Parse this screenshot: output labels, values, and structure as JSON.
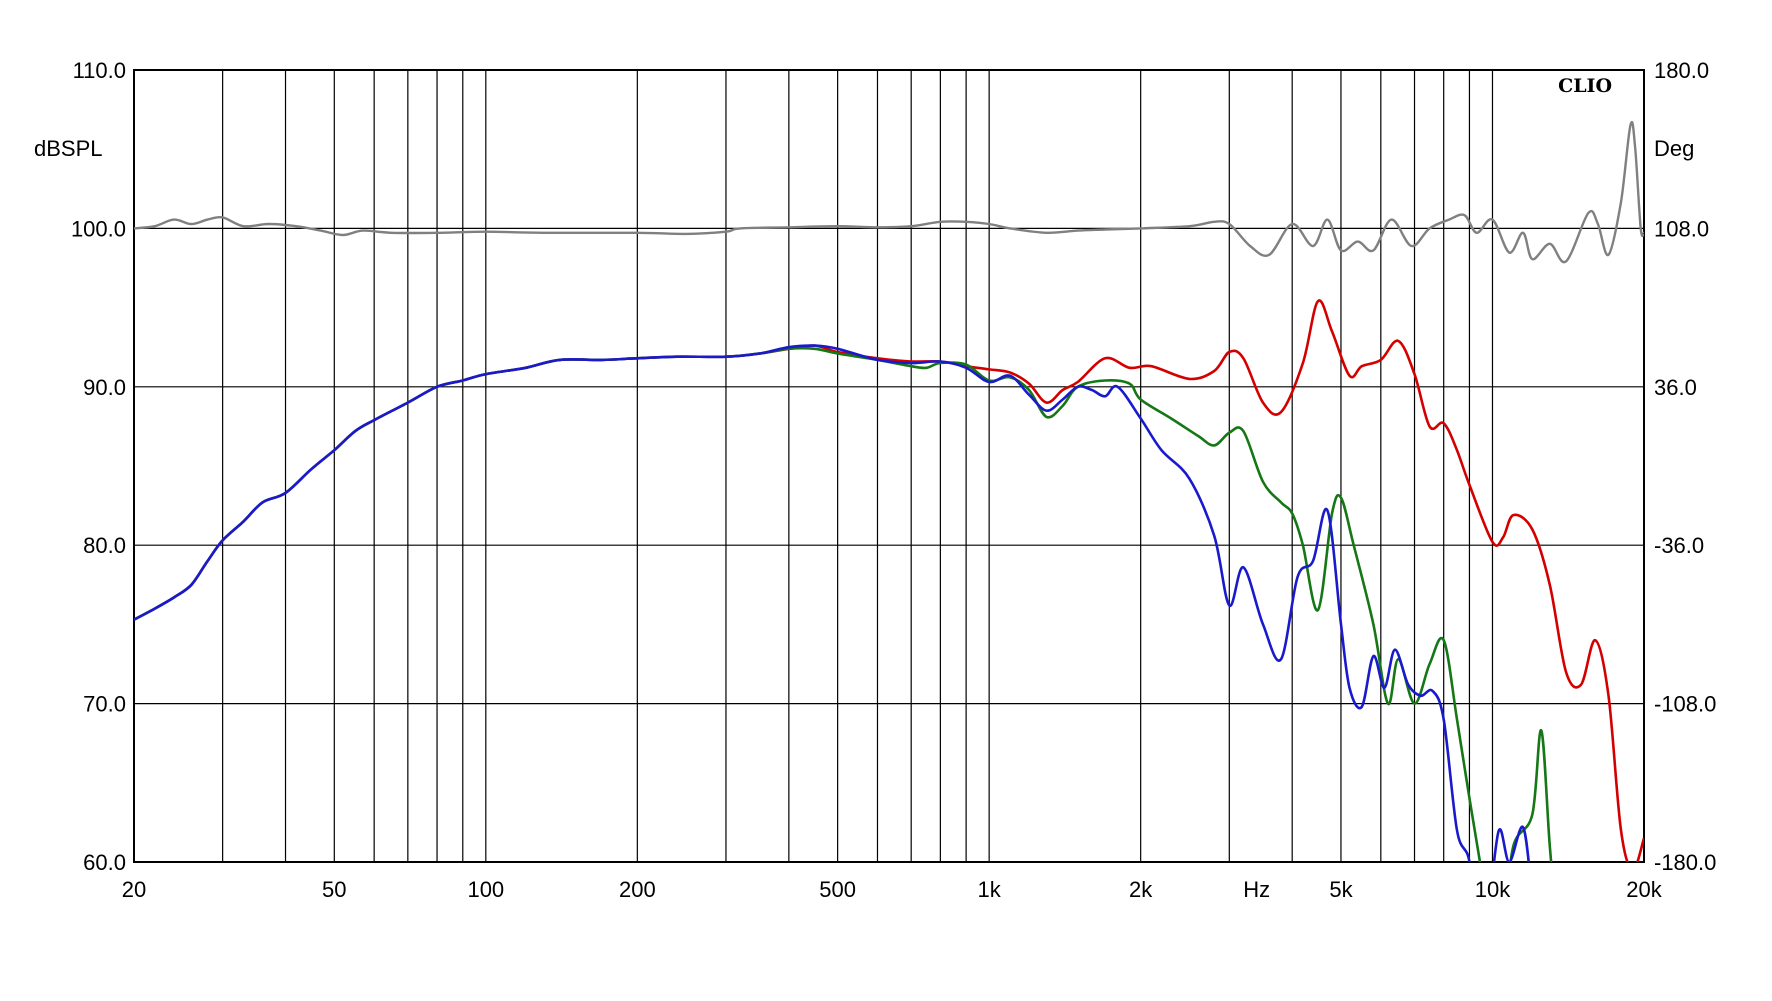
{
  "chart_data": {
    "type": "line",
    "brand": "CLIO",
    "x_scale": "log",
    "xlim": [
      20,
      20000
    ],
    "ylim_left": [
      60,
      110
    ],
    "ylim_right": [
      -180,
      180
    ],
    "grid": true,
    "left_unit": "dBSPL",
    "right_unit": "Deg",
    "x_unit": "Hz",
    "x_ticks": [
      {
        "value": 20,
        "label": "20"
      },
      {
        "value": 50,
        "label": "50"
      },
      {
        "value": 100,
        "label": "100"
      },
      {
        "value": 200,
        "label": "200"
      },
      {
        "value": 500,
        "label": "500"
      },
      {
        "value": 1000,
        "label": "1k"
      },
      {
        "value": 2000,
        "label": "2k"
      },
      {
        "value": 5000,
        "label": "5k"
      },
      {
        "value": 10000,
        "label": "10k"
      },
      {
        "value": 20000,
        "label": "20k"
      }
    ],
    "x_unit_position": 3400,
    "y_ticks_left": [
      {
        "value": 110,
        "label": "110.0"
      },
      {
        "value": 100,
        "label": "100.0"
      },
      {
        "value": 90,
        "label": "90.0"
      },
      {
        "value": 80,
        "label": "80.0"
      },
      {
        "value": 70,
        "label": "70.0"
      },
      {
        "value": 60,
        "label": "60.0"
      }
    ],
    "y_ticks_right": [
      {
        "value": 180,
        "label": "180.0"
      },
      {
        "value": 108,
        "label": "108.0"
      },
      {
        "value": 36,
        "label": "36.0"
      },
      {
        "value": -36,
        "label": "-36.0"
      },
      {
        "value": -108,
        "label": "-108.0"
      },
      {
        "value": -180,
        "label": "-180.0"
      }
    ],
    "series": [
      {
        "color": "#808080",
        "axis": "right",
        "points": [
          [
            20,
            108
          ],
          [
            22,
            109
          ],
          [
            24,
            112
          ],
          [
            26,
            110
          ],
          [
            28,
            112
          ],
          [
            30,
            113
          ],
          [
            33,
            109
          ],
          [
            37,
            110
          ],
          [
            42,
            109
          ],
          [
            47,
            107
          ],
          [
            52,
            105
          ],
          [
            57,
            107
          ],
          [
            65,
            106
          ],
          [
            80,
            106
          ],
          [
            100,
            106.5
          ],
          [
            130,
            106
          ],
          [
            200,
            106
          ],
          [
            250,
            105.5
          ],
          [
            300,
            106.5
          ],
          [
            320,
            108
          ],
          [
            400,
            108.5
          ],
          [
            500,
            109
          ],
          [
            600,
            108.5
          ],
          [
            700,
            109
          ],
          [
            800,
            111
          ],
          [
            900,
            111
          ],
          [
            1000,
            110
          ],
          [
            1100,
            108
          ],
          [
            1300,
            106
          ],
          [
            1500,
            107
          ],
          [
            1700,
            107.5
          ],
          [
            2000,
            108
          ],
          [
            2500,
            109
          ],
          [
            2800,
            111
          ],
          [
            3000,
            110
          ],
          [
            3300,
            100
          ],
          [
            3600,
            96
          ],
          [
            4000,
            110
          ],
          [
            4400,
            100
          ],
          [
            4700,
            112
          ],
          [
            5000,
            98
          ],
          [
            5400,
            102
          ],
          [
            5800,
            98
          ],
          [
            6300,
            112
          ],
          [
            6900,
            100
          ],
          [
            7500,
            108
          ],
          [
            8200,
            112
          ],
          [
            8800,
            114
          ],
          [
            9300,
            106
          ],
          [
            10000,
            112
          ],
          [
            10800,
            97
          ],
          [
            11500,
            106
          ],
          [
            12000,
            94
          ],
          [
            13000,
            101
          ],
          [
            14000,
            93
          ],
          [
            15500,
            115
          ],
          [
            16200,
            110
          ],
          [
            17000,
            96
          ],
          [
            18000,
            120
          ],
          [
            18800,
            155
          ],
          [
            19200,
            145
          ],
          [
            19700,
            108
          ],
          [
            20000,
            106
          ]
        ]
      },
      {
        "color": "#d40000",
        "axis": "left",
        "points": [
          [
            20,
            75.3
          ],
          [
            22,
            76
          ],
          [
            24,
            76.7
          ],
          [
            26,
            77.5
          ],
          [
            28,
            79
          ],
          [
            30,
            80.3
          ],
          [
            33,
            81.5
          ],
          [
            36,
            82.7
          ],
          [
            40,
            83.3
          ],
          [
            45,
            84.8
          ],
          [
            50,
            86
          ],
          [
            55,
            87.2
          ],
          [
            60,
            87.9
          ],
          [
            70,
            89
          ],
          [
            80,
            90
          ],
          [
            90,
            90.4
          ],
          [
            100,
            90.8
          ],
          [
            120,
            91.2
          ],
          [
            140,
            91.7
          ],
          [
            170,
            91.7
          ],
          [
            200,
            91.8
          ],
          [
            240,
            91.9
          ],
          [
            300,
            91.9
          ],
          [
            350,
            92.1
          ],
          [
            400,
            92.4
          ],
          [
            450,
            92.6
          ],
          [
            500,
            92.2
          ],
          [
            600,
            91.8
          ],
          [
            700,
            91.6
          ],
          [
            800,
            91.6
          ],
          [
            900,
            91.3
          ],
          [
            1000,
            91.1
          ],
          [
            1100,
            90.9
          ],
          [
            1200,
            90.2
          ],
          [
            1300,
            89
          ],
          [
            1400,
            89.8
          ],
          [
            1500,
            90.3
          ],
          [
            1700,
            91.8
          ],
          [
            1900,
            91.2
          ],
          [
            2100,
            91.3
          ],
          [
            2500,
            90.5
          ],
          [
            2800,
            91
          ],
          [
            3000,
            92.2
          ],
          [
            3200,
            91.8
          ],
          [
            3500,
            89
          ],
          [
            3800,
            88.4
          ],
          [
            4200,
            91.5
          ],
          [
            4500,
            95.4
          ],
          [
            4800,
            93.5
          ],
          [
            5200,
            90.7
          ],
          [
            5500,
            91.3
          ],
          [
            6000,
            91.7
          ],
          [
            6500,
            92.9
          ],
          [
            7000,
            90.8
          ],
          [
            7500,
            87.5
          ],
          [
            8000,
            87.7
          ],
          [
            8500,
            86
          ],
          [
            9000,
            83.8
          ],
          [
            10000,
            80.2
          ],
          [
            10500,
            80.5
          ],
          [
            11000,
            81.9
          ],
          [
            12000,
            81
          ],
          [
            13000,
            77.5
          ],
          [
            14000,
            72
          ],
          [
            15000,
            71.2
          ],
          [
            16000,
            74
          ],
          [
            17000,
            70.5
          ],
          [
            18000,
            62
          ],
          [
            19000,
            59.5
          ],
          [
            20000,
            61.5
          ]
        ]
      },
      {
        "color": "#157715",
        "axis": "left",
        "points": [
          [
            20,
            75.3
          ],
          [
            22,
            76
          ],
          [
            24,
            76.7
          ],
          [
            26,
            77.5
          ],
          [
            28,
            79
          ],
          [
            30,
            80.3
          ],
          [
            33,
            81.5
          ],
          [
            36,
            82.7
          ],
          [
            40,
            83.3
          ],
          [
            45,
            84.8
          ],
          [
            50,
            86
          ],
          [
            55,
            87.2
          ],
          [
            60,
            87.9
          ],
          [
            70,
            89
          ],
          [
            80,
            90
          ],
          [
            90,
            90.4
          ],
          [
            100,
            90.8
          ],
          [
            120,
            91.2
          ],
          [
            140,
            91.7
          ],
          [
            170,
            91.7
          ],
          [
            200,
            91.8
          ],
          [
            240,
            91.9
          ],
          [
            300,
            91.9
          ],
          [
            350,
            92.1
          ],
          [
            400,
            92.4
          ],
          [
            450,
            92.4
          ],
          [
            500,
            92.1
          ],
          [
            600,
            91.7
          ],
          [
            700,
            91.3
          ],
          [
            750,
            91.2
          ],
          [
            800,
            91.5
          ],
          [
            900,
            91.4
          ],
          [
            1000,
            90.4
          ],
          [
            1100,
            90.6
          ],
          [
            1200,
            89.8
          ],
          [
            1300,
            88.1
          ],
          [
            1400,
            88.8
          ],
          [
            1500,
            90
          ],
          [
            1700,
            90.4
          ],
          [
            1900,
            90.2
          ],
          [
            2000,
            89.2
          ],
          [
            2300,
            88
          ],
          [
            2600,
            86.9
          ],
          [
            2800,
            86.3
          ],
          [
            3000,
            87.1
          ],
          [
            3200,
            87.2
          ],
          [
            3500,
            84
          ],
          [
            3800,
            82.7
          ],
          [
            4000,
            82
          ],
          [
            4200,
            80
          ],
          [
            4500,
            75.9
          ],
          [
            4800,
            82
          ],
          [
            5000,
            83
          ],
          [
            5300,
            80
          ],
          [
            5800,
            75
          ],
          [
            6200,
            70
          ],
          [
            6500,
            72.8
          ],
          [
            7000,
            70
          ],
          [
            7500,
            72.5
          ],
          [
            8000,
            74
          ],
          [
            8500,
            69
          ],
          [
            9000,
            64
          ],
          [
            9500,
            59.5
          ],
          [
            10000,
            55
          ],
          [
            10500,
            56
          ],
          [
            11000,
            61
          ],
          [
            12000,
            63
          ],
          [
            12500,
            68.3
          ],
          [
            13000,
            61
          ],
          [
            13500,
            55
          ]
        ]
      },
      {
        "color": "#1a1acd",
        "axis": "left",
        "points": [
          [
            20,
            75.3
          ],
          [
            22,
            76
          ],
          [
            24,
            76.7
          ],
          [
            26,
            77.5
          ],
          [
            28,
            79
          ],
          [
            30,
            80.3
          ],
          [
            33,
            81.5
          ],
          [
            36,
            82.7
          ],
          [
            40,
            83.3
          ],
          [
            45,
            84.8
          ],
          [
            50,
            86
          ],
          [
            55,
            87.2
          ],
          [
            60,
            87.9
          ],
          [
            70,
            89
          ],
          [
            80,
            90
          ],
          [
            90,
            90.4
          ],
          [
            100,
            90.8
          ],
          [
            120,
            91.2
          ],
          [
            140,
            91.7
          ],
          [
            170,
            91.7
          ],
          [
            200,
            91.8
          ],
          [
            240,
            91.9
          ],
          [
            300,
            91.9
          ],
          [
            350,
            92.1
          ],
          [
            400,
            92.5
          ],
          [
            450,
            92.6
          ],
          [
            500,
            92.4
          ],
          [
            600,
            91.7
          ],
          [
            700,
            91.5
          ],
          [
            800,
            91.6
          ],
          [
            900,
            91.2
          ],
          [
            1000,
            90.3
          ],
          [
            1100,
            90.7
          ],
          [
            1200,
            89.5
          ],
          [
            1300,
            88.5
          ],
          [
            1400,
            89.2
          ],
          [
            1500,
            90
          ],
          [
            1600,
            89.8
          ],
          [
            1700,
            89.4
          ],
          [
            1800,
            90
          ],
          [
            2000,
            88
          ],
          [
            2200,
            86
          ],
          [
            2500,
            84.2
          ],
          [
            2800,
            80.6
          ],
          [
            3000,
            76.2
          ],
          [
            3200,
            78.6
          ],
          [
            3500,
            75
          ],
          [
            3800,
            72.8
          ],
          [
            4100,
            78
          ],
          [
            4400,
            79
          ],
          [
            4700,
            82.2
          ],
          [
            5000,
            75
          ],
          [
            5200,
            71
          ],
          [
            5500,
            69.8
          ],
          [
            5800,
            73
          ],
          [
            6100,
            71
          ],
          [
            6400,
            73.4
          ],
          [
            6800,
            71.2
          ],
          [
            7200,
            70.5
          ],
          [
            7600,
            70.8
          ],
          [
            8000,
            69
          ],
          [
            8500,
            62
          ],
          [
            9000,
            60
          ],
          [
            9300,
            55
          ],
          [
            9800,
            57
          ],
          [
            10300,
            62
          ],
          [
            10800,
            60
          ],
          [
            11500,
            62.2
          ],
          [
            12000,
            58
          ],
          [
            12500,
            55
          ]
        ]
      }
    ]
  }
}
